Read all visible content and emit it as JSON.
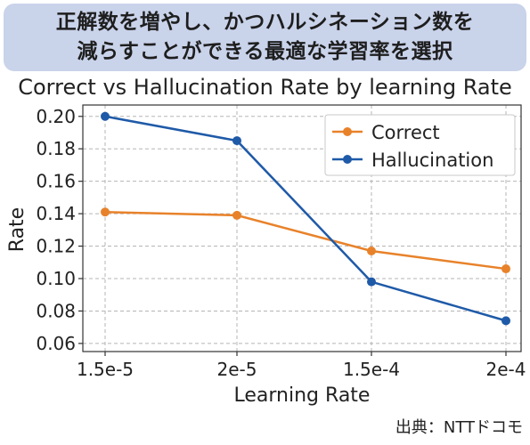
{
  "header": {
    "line1": "正解数を増やし、かつハルシネーション数を",
    "line2": "減らすことができる最適な学習率を選択"
  },
  "source": "出典：NTTドコモ",
  "chart_data": {
    "type": "line",
    "title": "Correct vs Hallucination Rate by learning Rate",
    "xlabel": "Learning Rate",
    "ylabel": "Rate",
    "categories": [
      "1.5e-5",
      "2e-5",
      "1.5e-4",
      "2e-4"
    ],
    "series": [
      {
        "name": "Correct",
        "color": "#e8822a",
        "values": [
          0.141,
          0.139,
          0.117,
          0.106
        ]
      },
      {
        "name": "Hallucination",
        "color": "#1f5aa8",
        "values": [
          0.2,
          0.185,
          0.098,
          0.074
        ]
      }
    ],
    "ylim": [
      0.055,
      0.207
    ],
    "yticks": [
      "0.06",
      "0.08",
      "0.10",
      "0.12",
      "0.14",
      "0.16",
      "0.18",
      "0.20"
    ],
    "grid": true,
    "legend_position": "top-right"
  }
}
